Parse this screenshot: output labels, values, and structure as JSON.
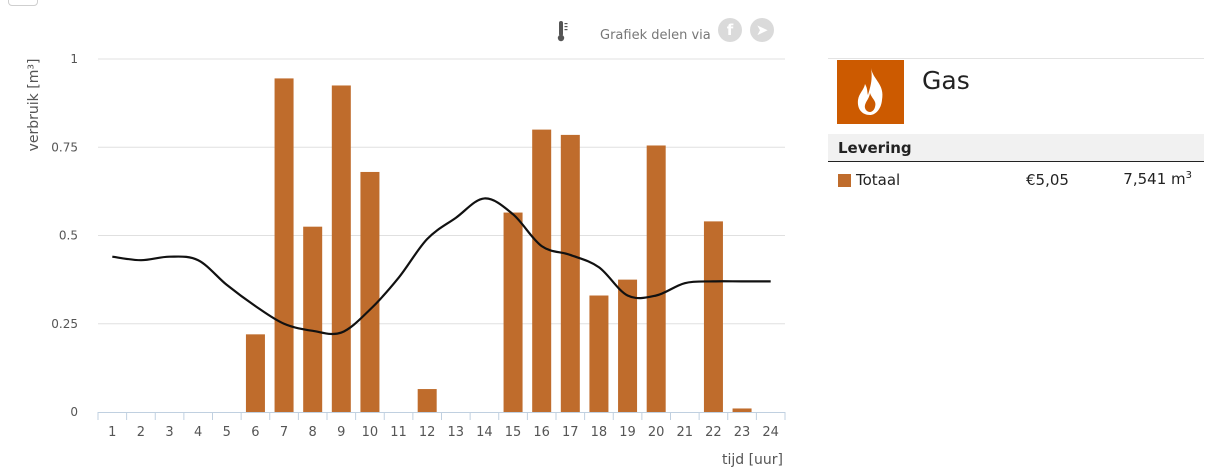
{
  "toolbar": {
    "share_label": "Grafiek delen via",
    "thermo_icon": "thermometer-icon",
    "share_icons": [
      "facebook-icon",
      "twitter-icon"
    ]
  },
  "chart_data": {
    "type": "bar",
    "title": "",
    "xlabel": "tijd [uur]",
    "ylabel": "verbruik [m³]",
    "ylim": [
      0,
      1
    ],
    "yticks": [
      0,
      0.25,
      0.5,
      0.75,
      1
    ],
    "ytick_labels": [
      "0",
      "0.25",
      "0.5",
      "0.75",
      "1"
    ],
    "categories": [
      "1",
      "2",
      "3",
      "4",
      "5",
      "6",
      "7",
      "8",
      "9",
      "10",
      "11",
      "12",
      "13",
      "14",
      "15",
      "16",
      "17",
      "18",
      "19",
      "20",
      "21",
      "22",
      "23",
      "24"
    ],
    "grid": true,
    "series": [
      {
        "type": "bar",
        "color": "#bf6c2c",
        "values": [
          0,
          0,
          0,
          0,
          0,
          0.22,
          0.945,
          0.525,
          0.925,
          0.68,
          0,
          0.065,
          0,
          0,
          0.565,
          0.8,
          0.785,
          0.33,
          0.375,
          0.755,
          0,
          0.54,
          0.01,
          0
        ]
      },
      {
        "type": "line",
        "color": "#111111",
        "values": [
          0.44,
          0.43,
          0.44,
          0.43,
          0.36,
          0.3,
          0.25,
          0.23,
          0.225,
          0.29,
          0.38,
          0.49,
          0.55,
          0.605,
          0.56,
          0.47,
          0.445,
          0.41,
          0.33,
          0.33,
          0.365,
          0.37,
          0.37,
          0.37
        ]
      }
    ]
  },
  "panel": {
    "gas_title": "Gas",
    "gas_icon": "flame-icon",
    "gas_color": "#cc5a00",
    "section_label": "Levering",
    "rows": [
      {
        "label": "Totaal",
        "cost": "€5,05",
        "amount": "7,541 m",
        "unit_exp": "3",
        "color": "#bf6c2c"
      }
    ]
  }
}
